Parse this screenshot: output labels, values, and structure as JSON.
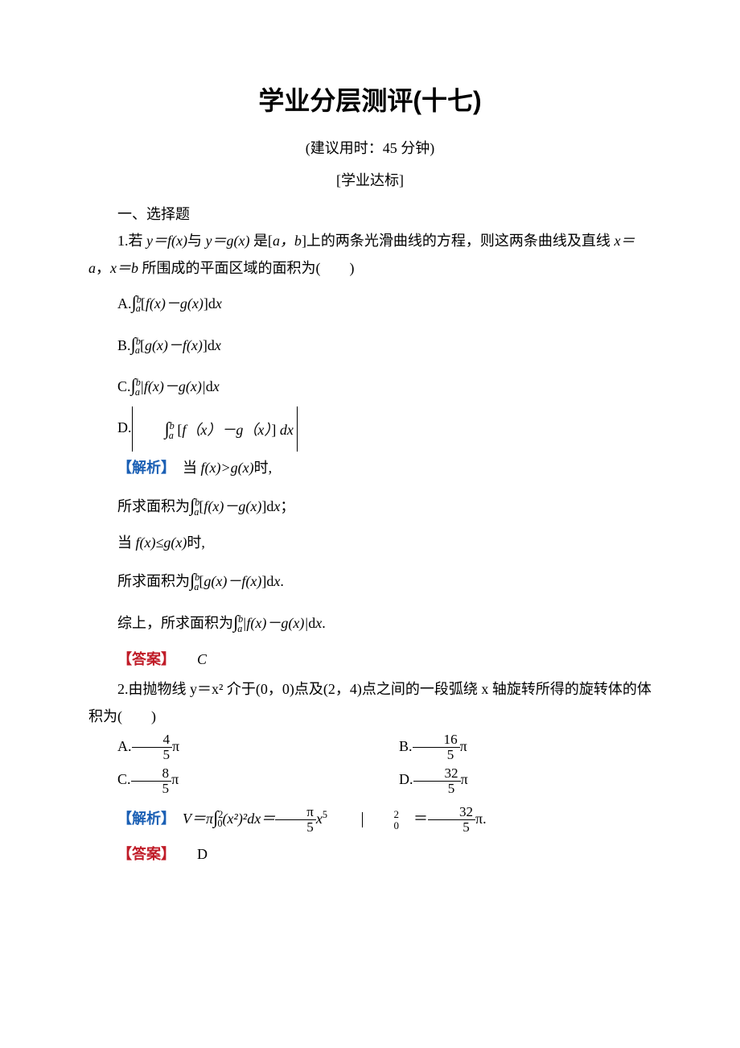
{
  "colors": {
    "text": "#000000",
    "background": "#ffffff",
    "analysis_label": "#1a5fb4",
    "answer_label": "#c01c28"
  },
  "typography": {
    "body_font": "SimSun",
    "heading_font": "SimHei",
    "title_size_pt": 24,
    "body_size_pt": 13
  },
  "title": "学业分层测评(十七)",
  "time_hint": "(建议用时：45 分钟)",
  "section_tag": "[学业达标]",
  "section_heading": "一、选择题",
  "q1": {
    "stem_a": "1.若 ",
    "stem_b": " 是[",
    "stem_c": "]上的两条光滑曲线的方程，则这两条曲线及直线 ",
    "stem_d": " 所围成的平面区域的面积为(　　)",
    "y_eq_fx": "y＝f(x)",
    "and": "与 ",
    "y_eq_gx": "y＝g(x)",
    "ab": "a，b",
    "xa": "x＝a",
    "comma": "，",
    "xb": "x＝b",
    "optA_head": "A.",
    "optB_head": "B.",
    "optC_head": "C.",
    "optD_head": "D.",
    "fx_minus_gx": "f(x)－g(x)",
    "gx_minus_fx": "g(x)－f(x)",
    "abs_fx_minus_gx": "|f(x)－g(x)|",
    "opt_d_inner_prefix": "f（x）－g（x）",
    "dx": "dx",
    "analysis_label": "【解析】",
    "analysis_line1_a": "当 ",
    "fx_gt_gx": "f(x)>g(x)",
    "analysis_line1_b": "时,",
    "analysis_line2_a": "所求面积为",
    "fx_minus_gx_sp": "f(x)－g(x)",
    "semicolon": "；",
    "analysis_line3_a": "当 ",
    "fx_le_gx": "f(x)≤g(x)",
    "analysis_line3_b": "时,",
    "analysis_line4_a": "所求面积为",
    "gx_minus_fx_sp": "g(x)－f(x)",
    "period": ".",
    "analysis_line5_a": "综上，所求面积为",
    "abs_fx_minus_gx_sp": "|f(x)－g(x)|",
    "answer_label": "【答案】",
    "answer": "C"
  },
  "q2": {
    "stem": "2.由抛物线 y＝x² 介于(0，0)点及(2，4)点之间的一段弧绕 x 轴旋转所得的旋转体的体积为(　　)",
    "optA_head": "A.",
    "optA_num": "4",
    "optA_den": "5",
    "optB_head": "B.",
    "optB_num": "16",
    "optB_den": "5",
    "optC_head": "C.",
    "optC_num": "8",
    "optC_den": "5",
    "optD_head": "D.",
    "optD_num": "32",
    "optD_den": "5",
    "pi": "π",
    "analysis_label": "【解析】",
    "V_eq": "V＝π",
    "int_lo": "0",
    "int_hi": "2",
    "integrand": "(x²)²dx＝",
    "pi_over_5_num": "π",
    "pi_over_5_den": "5",
    "x5": "x",
    "x5_exp": "5",
    "eval_lo": "0",
    "eval_hi": "2",
    "eq": "＝",
    "res_num": "32",
    "res_den": "5",
    "answer_label": "【答案】",
    "answer": "D"
  }
}
